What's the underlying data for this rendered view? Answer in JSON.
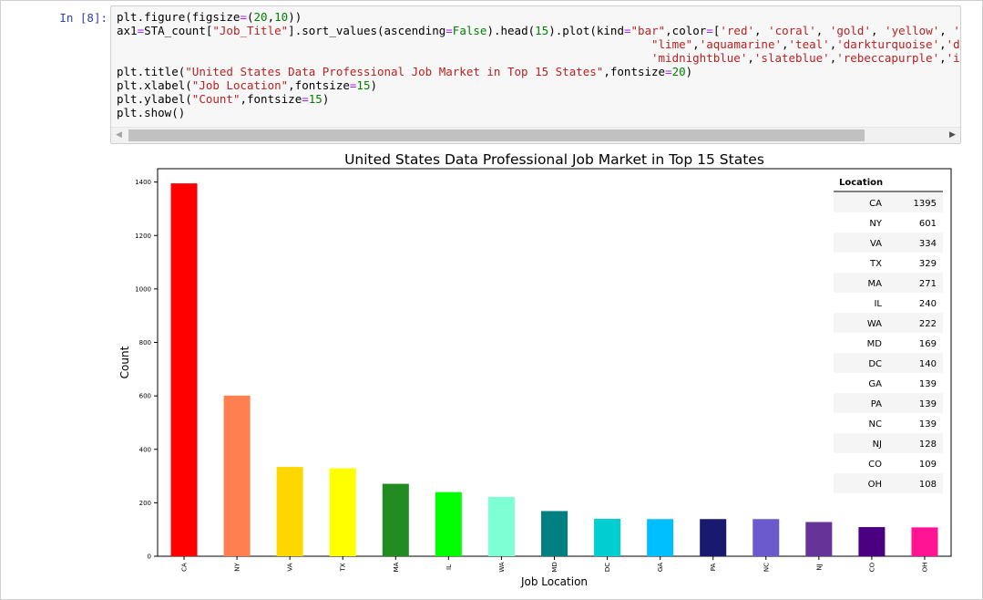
{
  "cell": {
    "prompt": "In [8]:",
    "code_lines": [
      "plt.figure(figsize=(20,10))",
      "ax1=STA_count[\"Job_Title\"].sort_values(ascending=False).head(15).plot(kind=\"bar\",color=['red', 'coral', 'gold', 'yellow', 'fores",
      "                                                                              \"lime\",'aquamarine','teal','darkturquoise','deepsky",
      "                                                                              'midnightblue','slateblue','rebeccapurple','indigo',",
      "plt.title(\"United States Data Professional Job Market in Top 15 States\",fontsize=20)",
      "plt.xlabel(\"Job Location\",fontsize=15)",
      "plt.ylabel(\"Count\",fontsize=15)",
      "plt.show()"
    ]
  },
  "chart_data": {
    "type": "bar",
    "title": "United States Data Professional Job Market in Top 15 States",
    "xlabel": "Job Location",
    "ylabel": "Count",
    "ylim": [
      0,
      1450
    ],
    "yticks": [
      0,
      200,
      400,
      600,
      800,
      1000,
      1200,
      1400
    ],
    "categories": [
      "CA",
      "NY",
      "VA",
      "TX",
      "MA",
      "IL",
      "WA",
      "MD",
      "DC",
      "GA",
      "PA",
      "NC",
      "NJ",
      "CO",
      "OH"
    ],
    "values": [
      1395,
      601,
      334,
      329,
      271,
      240,
      222,
      169,
      140,
      139,
      139,
      139,
      128,
      109,
      108
    ],
    "colors": [
      "#ff0000",
      "#ff7f50",
      "#ffd700",
      "#ffff00",
      "#228b22",
      "#00ff00",
      "#7fffd4",
      "#008080",
      "#00ced1",
      "#00bfff",
      "#191970",
      "#6a5acd",
      "#663399",
      "#4b0082",
      "#ff1493"
    ],
    "table": {
      "header": "Location",
      "rows": [
        [
          "CA",
          "1395"
        ],
        [
          "NY",
          "601"
        ],
        [
          "VA",
          "334"
        ],
        [
          "TX",
          "329"
        ],
        [
          "MA",
          "271"
        ],
        [
          "IL",
          "240"
        ],
        [
          "WA",
          "222"
        ],
        [
          "MD",
          "169"
        ],
        [
          "DC",
          "140"
        ],
        [
          "GA",
          "139"
        ],
        [
          "PA",
          "139"
        ],
        [
          "NC",
          "139"
        ],
        [
          "NJ",
          "128"
        ],
        [
          "CO",
          "109"
        ],
        [
          "OH",
          "108"
        ]
      ]
    }
  }
}
